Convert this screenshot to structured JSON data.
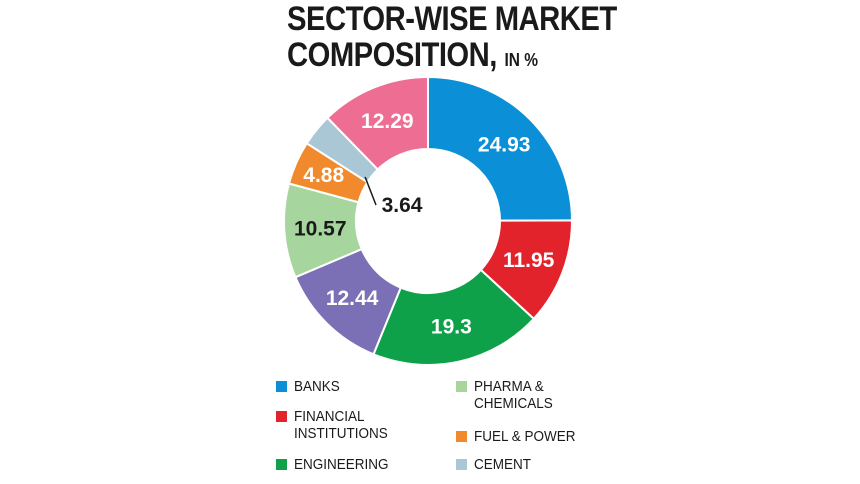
{
  "title": {
    "line1": "SECTOR-WISE MARKET",
    "line2": "COMPOSITION,",
    "unit": "IN %"
  },
  "chart_data": {
    "type": "pie",
    "variant": "donut",
    "title": "SECTOR-WISE MARKET COMPOSITION, IN %",
    "categories": [
      "BANKS",
      "FINANCIAL INSTITUTIONS",
      "ENGINEERING",
      "PHARMA & CHEMICALS",
      "FUEL & POWER",
      "CEMENT"
    ],
    "slices": [
      {
        "label": "BANKS",
        "value": 24.93,
        "color": "#0b8fd6",
        "text_color": "#ffffff"
      },
      {
        "label": "FINANCIAL INSTITUTIONS",
        "value": 11.95,
        "color": "#e3232c",
        "text_color": "#ffffff"
      },
      {
        "label": "ENGINEERING",
        "value": 19.3,
        "color": "#0fa14a",
        "text_color": "#ffffff"
      },
      {
        "label": "",
        "value": 12.44,
        "color": "#7b70b5",
        "text_color": "#ffffff"
      },
      {
        "label": "PHARMA & CHEMICALS",
        "value": 10.57,
        "color": "#a7d59e",
        "text_color": "#1a1a1a"
      },
      {
        "label": "FUEL & POWER",
        "value": 4.88,
        "color": "#f08a2c",
        "text_color": "#ffffff"
      },
      {
        "label": "CEMENT",
        "value": 3.64,
        "color": "#a9c7d4",
        "text_color": "#1a1a1a"
      },
      {
        "label": "",
        "value": 12.29,
        "color": "#ee6d92",
        "text_color": "#ffffff"
      }
    ],
    "legend_placement": "bottom"
  },
  "legend": [
    {
      "label": "BANKS",
      "color": "#0b8fd6"
    },
    {
      "label": "FINANCIAL\nINSTITUTIONS",
      "color": "#e3232c"
    },
    {
      "label": "ENGINEERING",
      "color": "#0fa14a"
    },
    {
      "label": "PHARMA &\nCHEMICALS",
      "color": "#a7d59e"
    },
    {
      "label": "FUEL & POWER",
      "color": "#f08a2c"
    },
    {
      "label": "CEMENT",
      "color": "#a9c7d4"
    }
  ]
}
